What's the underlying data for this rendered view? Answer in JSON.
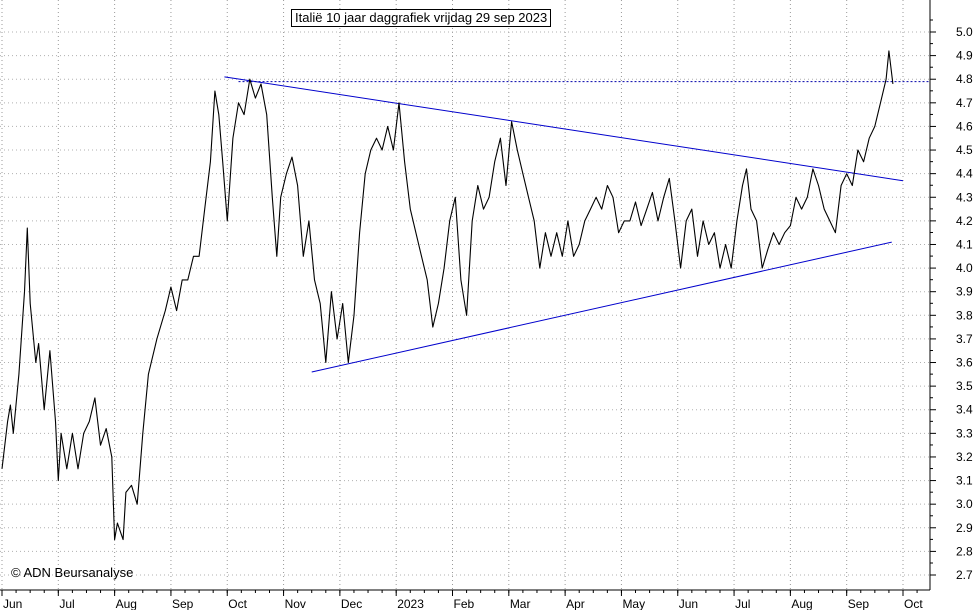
{
  "chart_data": {
    "type": "line",
    "title": "Italië 10 jaar daggrafiek vrijdag 29 sep 2023",
    "credit": "© ADN Beursanalyse",
    "ylim": [
      2.6,
      5.1
    ],
    "y_ticks": [
      "2.7",
      "2.8",
      "2.9",
      "3.0",
      "3.1",
      "3.2",
      "3.3",
      "3.4",
      "3.5",
      "3.6",
      "3.7",
      "3.8",
      "3.9",
      "4.0",
      "4.1",
      "4.2",
      "4.3",
      "4.4",
      "4.5",
      "4.6",
      "4.7",
      "4.8",
      "4.9",
      "5.0"
    ],
    "x_range": [
      0,
      16.6
    ],
    "x_ticks": [
      {
        "label": "Jun",
        "x": 0
      },
      {
        "label": "Jul",
        "x": 1
      },
      {
        "label": "Aug",
        "x": 2
      },
      {
        "label": "Sep",
        "x": 3
      },
      {
        "label": "Oct",
        "x": 4
      },
      {
        "label": "Nov",
        "x": 5
      },
      {
        "label": "Dec",
        "x": 6
      },
      {
        "label": "2023",
        "x": 7
      },
      {
        "label": "Feb",
        "x": 8
      },
      {
        "label": "Mar",
        "x": 9
      },
      {
        "label": "Apr",
        "x": 10
      },
      {
        "label": "May",
        "x": 11
      },
      {
        "label": "Jun",
        "x": 12
      },
      {
        "label": "Jul",
        "x": 13
      },
      {
        "label": "Aug",
        "x": 14
      },
      {
        "label": "Sep",
        "x": 15
      },
      {
        "label": "Oct",
        "x": 16
      }
    ],
    "grid": true,
    "series": [
      {
        "color": "#000000",
        "points": [
          [
            0.0,
            3.15
          ],
          [
            0.1,
            3.35
          ],
          [
            0.15,
            3.42
          ],
          [
            0.2,
            3.3
          ],
          [
            0.3,
            3.55
          ],
          [
            0.4,
            3.9
          ],
          [
            0.45,
            4.17
          ],
          [
            0.5,
            3.85
          ],
          [
            0.6,
            3.6
          ],
          [
            0.65,
            3.68
          ],
          [
            0.75,
            3.4
          ],
          [
            0.85,
            3.65
          ],
          [
            0.95,
            3.35
          ],
          [
            1.0,
            3.1
          ],
          [
            1.05,
            3.3
          ],
          [
            1.15,
            3.15
          ],
          [
            1.25,
            3.3
          ],
          [
            1.35,
            3.15
          ],
          [
            1.45,
            3.3
          ],
          [
            1.55,
            3.35
          ],
          [
            1.65,
            3.45
          ],
          [
            1.75,
            3.25
          ],
          [
            1.85,
            3.32
          ],
          [
            1.95,
            3.2
          ],
          [
            2.0,
            2.85
          ],
          [
            2.05,
            2.92
          ],
          [
            2.15,
            2.85
          ],
          [
            2.2,
            3.05
          ],
          [
            2.3,
            3.08
          ],
          [
            2.4,
            3.0
          ],
          [
            2.5,
            3.3
          ],
          [
            2.6,
            3.55
          ],
          [
            2.75,
            3.7
          ],
          [
            2.9,
            3.82
          ],
          [
            3.0,
            3.92
          ],
          [
            3.1,
            3.82
          ],
          [
            3.2,
            3.95
          ],
          [
            3.3,
            3.95
          ],
          [
            3.4,
            4.05
          ],
          [
            3.5,
            4.05
          ],
          [
            3.6,
            4.25
          ],
          [
            3.7,
            4.45
          ],
          [
            3.78,
            4.75
          ],
          [
            3.85,
            4.65
          ],
          [
            3.92,
            4.45
          ],
          [
            4.0,
            4.2
          ],
          [
            4.1,
            4.55
          ],
          [
            4.2,
            4.7
          ],
          [
            4.3,
            4.65
          ],
          [
            4.4,
            4.8
          ],
          [
            4.5,
            4.72
          ],
          [
            4.6,
            4.78
          ],
          [
            4.7,
            4.65
          ],
          [
            4.8,
            4.3
          ],
          [
            4.88,
            4.05
          ],
          [
            4.95,
            4.3
          ],
          [
            5.05,
            4.4
          ],
          [
            5.15,
            4.47
          ],
          [
            5.25,
            4.35
          ],
          [
            5.35,
            4.05
          ],
          [
            5.45,
            4.2
          ],
          [
            5.55,
            3.95
          ],
          [
            5.65,
            3.85
          ],
          [
            5.75,
            3.6
          ],
          [
            5.85,
            3.9
          ],
          [
            5.95,
            3.7
          ],
          [
            6.05,
            3.85
          ],
          [
            6.15,
            3.6
          ],
          [
            6.25,
            3.8
          ],
          [
            6.35,
            4.15
          ],
          [
            6.45,
            4.4
          ],
          [
            6.55,
            4.5
          ],
          [
            6.65,
            4.55
          ],
          [
            6.75,
            4.5
          ],
          [
            6.85,
            4.6
          ],
          [
            6.95,
            4.5
          ],
          [
            7.05,
            4.7
          ],
          [
            7.15,
            4.45
          ],
          [
            7.25,
            4.25
          ],
          [
            7.35,
            4.15
          ],
          [
            7.45,
            4.05
          ],
          [
            7.55,
            3.95
          ],
          [
            7.65,
            3.75
          ],
          [
            7.75,
            3.85
          ],
          [
            7.85,
            4.0
          ],
          [
            7.95,
            4.2
          ],
          [
            8.05,
            4.3
          ],
          [
            8.15,
            3.95
          ],
          [
            8.25,
            3.8
          ],
          [
            8.35,
            4.2
          ],
          [
            8.45,
            4.35
          ],
          [
            8.55,
            4.25
          ],
          [
            8.65,
            4.3
          ],
          [
            8.75,
            4.45
          ],
          [
            8.85,
            4.55
          ],
          [
            8.95,
            4.35
          ],
          [
            9.05,
            4.62
          ],
          [
            9.15,
            4.5
          ],
          [
            9.25,
            4.4
          ],
          [
            9.35,
            4.3
          ],
          [
            9.45,
            4.2
          ],
          [
            9.55,
            4.0
          ],
          [
            9.65,
            4.15
          ],
          [
            9.75,
            4.05
          ],
          [
            9.85,
            4.15
          ],
          [
            9.95,
            4.05
          ],
          [
            10.05,
            4.2
          ],
          [
            10.15,
            4.05
          ],
          [
            10.25,
            4.1
          ],
          [
            10.35,
            4.2
          ],
          [
            10.45,
            4.25
          ],
          [
            10.55,
            4.3
          ],
          [
            10.65,
            4.25
          ],
          [
            10.75,
            4.35
          ],
          [
            10.85,
            4.3
          ],
          [
            10.95,
            4.15
          ],
          [
            11.05,
            4.2
          ],
          [
            11.15,
            4.2
          ],
          [
            11.25,
            4.28
          ],
          [
            11.35,
            4.18
          ],
          [
            11.45,
            4.25
          ],
          [
            11.55,
            4.32
          ],
          [
            11.65,
            4.2
          ],
          [
            11.75,
            4.3
          ],
          [
            11.85,
            4.38
          ],
          [
            11.95,
            4.2
          ],
          [
            12.05,
            4.0
          ],
          [
            12.15,
            4.2
          ],
          [
            12.25,
            4.25
          ],
          [
            12.35,
            4.05
          ],
          [
            12.45,
            4.2
          ],
          [
            12.55,
            4.1
          ],
          [
            12.65,
            4.15
          ],
          [
            12.75,
            4.0
          ],
          [
            12.85,
            4.1
          ],
          [
            12.95,
            4.0
          ],
          [
            13.05,
            4.2
          ],
          [
            13.15,
            4.35
          ],
          [
            13.22,
            4.42
          ],
          [
            13.3,
            4.25
          ],
          [
            13.4,
            4.2
          ],
          [
            13.5,
            4.0
          ],
          [
            13.6,
            4.08
          ],
          [
            13.7,
            4.15
          ],
          [
            13.8,
            4.1
          ],
          [
            13.9,
            4.15
          ],
          [
            14.0,
            4.18
          ],
          [
            14.1,
            4.3
          ],
          [
            14.2,
            4.25
          ],
          [
            14.3,
            4.3
          ],
          [
            14.4,
            4.42
          ],
          [
            14.5,
            4.35
          ],
          [
            14.6,
            4.25
          ],
          [
            14.7,
            4.2
          ],
          [
            14.8,
            4.15
          ],
          [
            14.9,
            4.35
          ],
          [
            15.0,
            4.4
          ],
          [
            15.1,
            4.35
          ],
          [
            15.2,
            4.5
          ],
          [
            15.3,
            4.45
          ],
          [
            15.4,
            4.55
          ],
          [
            15.5,
            4.6
          ],
          [
            15.6,
            4.7
          ],
          [
            15.7,
            4.8
          ],
          [
            15.75,
            4.92
          ],
          [
            15.82,
            4.78
          ]
        ]
      }
    ],
    "annotations": [
      {
        "type": "trendline",
        "color": "#0000cc",
        "from": [
          3.95,
          4.81
        ],
        "to": [
          16.0,
          4.37
        ]
      },
      {
        "type": "trendline",
        "color": "#0000cc",
        "from": [
          5.5,
          3.56
        ],
        "to": [
          15.8,
          4.11
        ]
      },
      {
        "type": "hline",
        "color": "#0000aa",
        "dashed": true,
        "y": 4.79,
        "from_x": 4.2
      }
    ]
  }
}
